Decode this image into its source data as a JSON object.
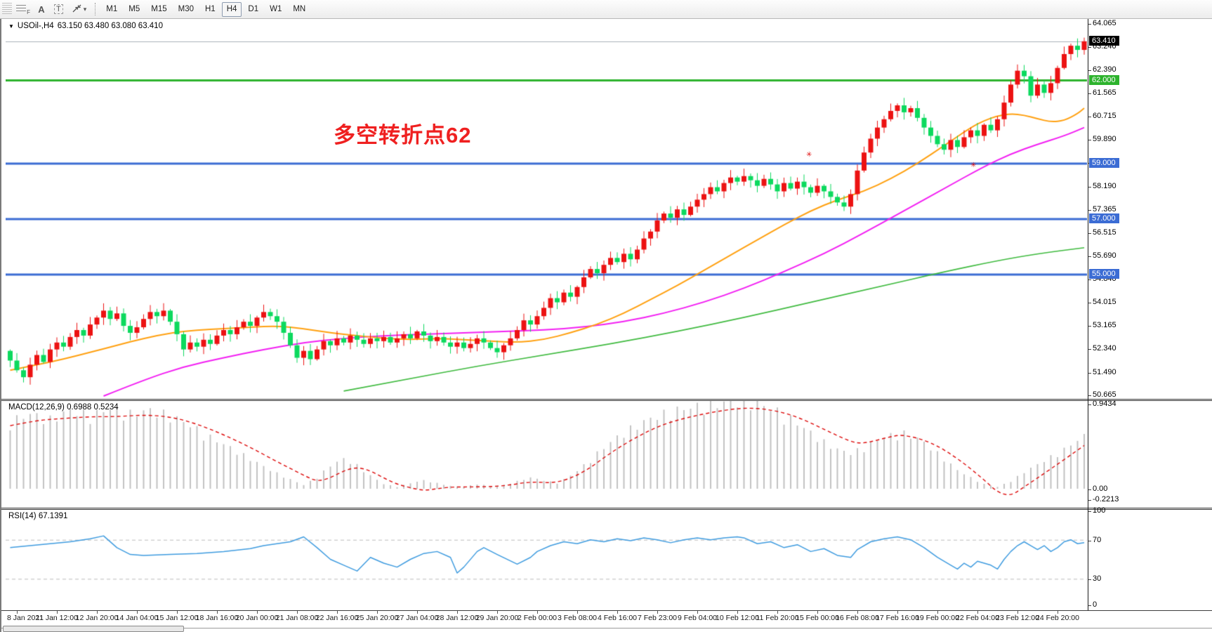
{
  "toolbar": {
    "tools": [
      {
        "name": "fibonacci-tool",
        "label": "F"
      },
      {
        "name": "text-tool",
        "label": "A"
      },
      {
        "name": "text-label-tool",
        "label": "T"
      },
      {
        "name": "arrows-tool",
        "label": ""
      }
    ],
    "timeframes": [
      "M1",
      "M5",
      "M15",
      "M30",
      "H1",
      "H4",
      "D1",
      "W1",
      "MN"
    ],
    "active_timeframe": "H4"
  },
  "chart": {
    "symbol_period": "USOil-,H4",
    "ohlc_readout": "63.150 63.480 63.080 63.410",
    "annotation": "多空转折点62",
    "price_axis_ticks": [
      "64.065",
      "63.240",
      "62.390",
      "61.565",
      "60.715",
      "59.890",
      "59.040",
      "58.190",
      "57.365",
      "56.515",
      "55.690",
      "54.840",
      "54.015",
      "53.165",
      "52.340",
      "51.490",
      "50.665"
    ],
    "hlines": [
      {
        "price": 62.0,
        "label": "62.000",
        "color": "#2db32d"
      },
      {
        "price": 59.0,
        "label": "59.000",
        "color": "#3b6cd4"
      },
      {
        "price": 57.0,
        "label": "57.000",
        "color": "#3b6cd4"
      },
      {
        "price": 55.0,
        "label": "55.000",
        "color": "#3b6cd4"
      }
    ],
    "current_price": {
      "value": 63.41,
      "label": "63.410",
      "color": "#000000"
    },
    "time_labels": [
      "8 Jan 2021",
      "11 Jan 12:00",
      "12 Jan 20:00",
      "14 Jan 04:00",
      "15 Jan 12:00",
      "18 Jan 16:00",
      "20 Jan 00:00",
      "21 Jan 08:00",
      "22 Jan 16:00",
      "25 Jan 20:00",
      "27 Jan 04:00",
      "28 Jan 12:00",
      "29 Jan 20:00",
      "2 Feb 00:00",
      "3 Feb 08:00",
      "4 Feb 16:00",
      "7 Feb 23:00",
      "9 Feb 04:00",
      "10 Feb 12:00",
      "11 Feb 20:00",
      "15 Feb 00:00",
      "16 Feb 08:00",
      "17 Feb 16:00",
      "19 Feb 00:00",
      "22 Feb 04:00",
      "23 Feb 12:00",
      "24 Feb 20:00"
    ]
  },
  "macd_panel": {
    "label": "MACD(12,26,9) 0.6988 0.5234",
    "axis_ticks": [
      "0.9434",
      "0.00",
      "-0.2213"
    ]
  },
  "rsi_panel": {
    "label": "RSI(14) 67.1391",
    "axis_ticks": [
      "100",
      "70",
      "30",
      "0"
    ]
  },
  "colors": {
    "candle_up": "#ec1212",
    "candle_down": "#0cd95e",
    "ma_fast": "#ffa010",
    "ma_mid": "#f21ff2",
    "ma_slow": "#3fba3f",
    "macd_hist": "#c2c2c2",
    "macd_signal": "#dd0b0b",
    "rsi_line": "#3e9bdf",
    "rsi_levels": "#bbbbbb",
    "current_price_line": "#a8b0b8"
  },
  "chart_data": {
    "type": "candlestick+indicators",
    "bars": 162,
    "price_range": [
      50.665,
      64.065
    ],
    "closes": [
      51.9,
      51.55,
      51.3,
      51.75,
      52.1,
      51.85,
      52.3,
      52.55,
      52.4,
      52.75,
      53.0,
      52.8,
      53.2,
      53.45,
      53.7,
      53.4,
      53.6,
      53.15,
      52.9,
      53.1,
      53.4,
      53.65,
      53.5,
      53.7,
      53.3,
      52.85,
      52.3,
      52.55,
      52.4,
      52.65,
      52.5,
      52.8,
      53.0,
      52.85,
      53.1,
      53.3,
      53.15,
      53.45,
      53.65,
      53.5,
      53.3,
      52.9,
      52.45,
      52.0,
      52.25,
      51.95,
      52.3,
      52.6,
      52.45,
      52.7,
      52.55,
      52.8,
      52.65,
      52.5,
      52.7,
      52.6,
      52.75,
      52.55,
      52.7,
      52.85,
      52.7,
      52.95,
      52.8,
      52.6,
      52.75,
      52.55,
      52.4,
      52.55,
      52.35,
      52.5,
      52.7,
      52.55,
      52.35,
      52.2,
      52.45,
      52.7,
      53.0,
      53.35,
      53.2,
      53.5,
      53.8,
      54.15,
      54.0,
      54.35,
      54.2,
      54.55,
      54.9,
      55.2,
      55.05,
      55.35,
      55.6,
      55.45,
      55.75,
      55.55,
      55.9,
      56.3,
      56.55,
      56.95,
      57.2,
      57.05,
      57.35,
      57.15,
      57.45,
      57.7,
      57.9,
      58.15,
      58.0,
      58.3,
      58.5,
      58.35,
      58.55,
      58.4,
      58.2,
      58.45,
      58.25,
      58.0,
      58.3,
      58.1,
      58.35,
      58.15,
      57.95,
      58.2,
      58.0,
      57.8,
      57.6,
      57.45,
      57.9,
      58.75,
      59.4,
      59.9,
      60.3,
      60.6,
      60.9,
      61.1,
      60.85,
      61.0,
      60.65,
      60.3,
      60.0,
      59.7,
      59.5,
      59.85,
      59.6,
      59.95,
      60.2,
      60.0,
      60.4,
      60.2,
      60.6,
      61.2,
      61.85,
      62.35,
      62.15,
      61.45,
      61.85,
      61.55,
      61.9,
      62.45,
      62.95,
      63.25,
      63.1,
      63.41
    ],
    "ma_fast_orange": [
      [
        0,
        51.55
      ],
      [
        4,
        51.75
      ],
      [
        8,
        51.95
      ],
      [
        12,
        52.2
      ],
      [
        16,
        52.45
      ],
      [
        20,
        52.7
      ],
      [
        24,
        52.9
      ],
      [
        28,
        53.0
      ],
      [
        32,
        53.05
      ],
      [
        36,
        53.1
      ],
      [
        40,
        53.15
      ],
      [
        44,
        53.05
      ],
      [
        48,
        52.9
      ],
      [
        52,
        52.8
      ],
      [
        56,
        52.7
      ],
      [
        60,
        52.65
      ],
      [
        64,
        52.7
      ],
      [
        68,
        52.65
      ],
      [
        72,
        52.6
      ],
      [
        76,
        52.55
      ],
      [
        80,
        52.65
      ],
      [
        84,
        52.9
      ],
      [
        88,
        53.2
      ],
      [
        92,
        53.6
      ],
      [
        96,
        54.1
      ],
      [
        100,
        54.6
      ],
      [
        104,
        55.15
      ],
      [
        108,
        55.7
      ],
      [
        112,
        56.25
      ],
      [
        116,
        56.8
      ],
      [
        120,
        57.3
      ],
      [
        124,
        57.7
      ],
      [
        128,
        58.0
      ],
      [
        132,
        58.45
      ],
      [
        136,
        59.0
      ],
      [
        140,
        59.65
      ],
      [
        144,
        60.3
      ],
      [
        146,
        60.55
      ],
      [
        148,
        60.72
      ],
      [
        150,
        60.8
      ],
      [
        152,
        60.75
      ],
      [
        154,
        60.62
      ],
      [
        156,
        60.5
      ],
      [
        158,
        60.55
      ],
      [
        160,
        60.8
      ],
      [
        161,
        61.0
      ]
    ],
    "ma_mid_magenta": [
      [
        14,
        50.62
      ],
      [
        20,
        51.2
      ],
      [
        26,
        51.68
      ],
      [
        32,
        52.0
      ],
      [
        38,
        52.3
      ],
      [
        44,
        52.55
      ],
      [
        50,
        52.7
      ],
      [
        56,
        52.8
      ],
      [
        62,
        52.85
      ],
      [
        68,
        52.9
      ],
      [
        74,
        52.95
      ],
      [
        80,
        53.0
      ],
      [
        86,
        53.1
      ],
      [
        92,
        53.3
      ],
      [
        98,
        53.6
      ],
      [
        104,
        54.0
      ],
      [
        110,
        54.5
      ],
      [
        116,
        55.1
      ],
      [
        122,
        55.75
      ],
      [
        128,
        56.5
      ],
      [
        134,
        57.3
      ],
      [
        140,
        58.1
      ],
      [
        146,
        58.9
      ],
      [
        150,
        59.35
      ],
      [
        154,
        59.7
      ],
      [
        158,
        60.0
      ],
      [
        161,
        60.3
      ]
    ],
    "ma_slow_green": [
      [
        50,
        50.8
      ],
      [
        60,
        51.25
      ],
      [
        70,
        51.7
      ],
      [
        80,
        52.1
      ],
      [
        90,
        52.5
      ],
      [
        100,
        52.95
      ],
      [
        110,
        53.45
      ],
      [
        120,
        54.0
      ],
      [
        130,
        54.55
      ],
      [
        140,
        55.1
      ],
      [
        148,
        55.5
      ],
      [
        154,
        55.75
      ],
      [
        161,
        55.97
      ]
    ],
    "macd_hist": [
      [
        0,
        0.72
      ],
      [
        3,
        0.8
      ],
      [
        6,
        0.74
      ],
      [
        9,
        0.84
      ],
      [
        12,
        0.78
      ],
      [
        15,
        0.86
      ],
      [
        18,
        0.8
      ],
      [
        21,
        0.84
      ],
      [
        24,
        0.78
      ],
      [
        27,
        0.68
      ],
      [
        30,
        0.55
      ],
      [
        33,
        0.44
      ],
      [
        36,
        0.32
      ],
      [
        39,
        0.2
      ],
      [
        42,
        0.1
      ],
      [
        44,
        0.04
      ],
      [
        46,
        0.12
      ],
      [
        48,
        0.25
      ],
      [
        50,
        0.32
      ],
      [
        52,
        0.25
      ],
      [
        54,
        0.14
      ],
      [
        56,
        0.05
      ],
      [
        58,
        0.02
      ],
      [
        60,
        0.06
      ],
      [
        62,
        0.09
      ],
      [
        64,
        0.06
      ],
      [
        66,
        0.03
      ],
      [
        68,
        0.02
      ],
      [
        70,
        0.05
      ],
      [
        72,
        0.03
      ],
      [
        74,
        0.04
      ],
      [
        76,
        0.08
      ],
      [
        78,
        0.12
      ],
      [
        80,
        0.09
      ],
      [
        82,
        0.06
      ],
      [
        84,
        0.14
      ],
      [
        86,
        0.25
      ],
      [
        88,
        0.38
      ],
      [
        90,
        0.5
      ],
      [
        92,
        0.6
      ],
      [
        94,
        0.68
      ],
      [
        96,
        0.75
      ],
      [
        98,
        0.8
      ],
      [
        100,
        0.84
      ],
      [
        102,
        0.87
      ],
      [
        104,
        0.89
      ],
      [
        106,
        0.91
      ],
      [
        108,
        0.93
      ],
      [
        110,
        0.94
      ],
      [
        112,
        0.91
      ],
      [
        114,
        0.86
      ],
      [
        116,
        0.79
      ],
      [
        118,
        0.7
      ],
      [
        120,
        0.6
      ],
      [
        122,
        0.5
      ],
      [
        124,
        0.42
      ],
      [
        126,
        0.38
      ],
      [
        128,
        0.44
      ],
      [
        130,
        0.52
      ],
      [
        132,
        0.57
      ],
      [
        134,
        0.59
      ],
      [
        136,
        0.54
      ],
      [
        138,
        0.44
      ],
      [
        140,
        0.32
      ],
      [
        142,
        0.2
      ],
      [
        144,
        0.12
      ],
      [
        146,
        0.05
      ],
      [
        148,
        0.02
      ],
      [
        150,
        0.08
      ],
      [
        152,
        0.18
      ],
      [
        154,
        0.26
      ],
      [
        156,
        0.34
      ],
      [
        158,
        0.42
      ],
      [
        160,
        0.52
      ],
      [
        161,
        0.56
      ]
    ],
    "macd_signal": [
      [
        0,
        0.7
      ],
      [
        4,
        0.76
      ],
      [
        8,
        0.78
      ],
      [
        12,
        0.8
      ],
      [
        16,
        0.8
      ],
      [
        20,
        0.82
      ],
      [
        24,
        0.8
      ],
      [
        28,
        0.72
      ],
      [
        32,
        0.6
      ],
      [
        36,
        0.46
      ],
      [
        40,
        0.3
      ],
      [
        44,
        0.15
      ],
      [
        46,
        0.08
      ],
      [
        48,
        0.12
      ],
      [
        50,
        0.2
      ],
      [
        52,
        0.24
      ],
      [
        54,
        0.2
      ],
      [
        56,
        0.12
      ],
      [
        58,
        0.05
      ],
      [
        60,
        0.01
      ],
      [
        62,
        -0.02
      ],
      [
        64,
        0.0
      ],
      [
        66,
        0.02
      ],
      [
        70,
        0.02
      ],
      [
        74,
        0.03
      ],
      [
        78,
        0.08
      ],
      [
        82,
        0.06
      ],
      [
        86,
        0.18
      ],
      [
        90,
        0.4
      ],
      [
        94,
        0.58
      ],
      [
        98,
        0.72
      ],
      [
        102,
        0.8
      ],
      [
        106,
        0.86
      ],
      [
        110,
        0.9
      ],
      [
        114,
        0.88
      ],
      [
        118,
        0.8
      ],
      [
        122,
        0.66
      ],
      [
        126,
        0.52
      ],
      [
        128,
        0.5
      ],
      [
        132,
        0.58
      ],
      [
        134,
        0.6
      ],
      [
        138,
        0.52
      ],
      [
        142,
        0.34
      ],
      [
        146,
        0.1
      ],
      [
        148,
        -0.04
      ],
      [
        150,
        -0.08
      ],
      [
        152,
        0.02
      ],
      [
        156,
        0.22
      ],
      [
        161,
        0.48
      ]
    ],
    "rsi": [
      [
        0,
        62
      ],
      [
        3,
        64
      ],
      [
        6,
        66
      ],
      [
        9,
        68
      ],
      [
        12,
        71
      ],
      [
        14,
        74
      ],
      [
        16,
        62
      ],
      [
        18,
        55
      ],
      [
        20,
        54
      ],
      [
        24,
        55
      ],
      [
        28,
        56
      ],
      [
        32,
        58
      ],
      [
        36,
        61
      ],
      [
        38,
        64
      ],
      [
        40,
        66
      ],
      [
        42,
        68
      ],
      [
        44,
        73
      ],
      [
        46,
        62
      ],
      [
        48,
        50
      ],
      [
        50,
        44
      ],
      [
        52,
        38
      ],
      [
        53,
        45
      ],
      [
        54,
        52
      ],
      [
        56,
        46
      ],
      [
        58,
        42
      ],
      [
        60,
        50
      ],
      [
        62,
        56
      ],
      [
        64,
        58
      ],
      [
        66,
        52
      ],
      [
        67,
        36
      ],
      [
        68,
        42
      ],
      [
        70,
        58
      ],
      [
        71,
        62
      ],
      [
        73,
        55
      ],
      [
        76,
        45
      ],
      [
        78,
        52
      ],
      [
        79,
        58
      ],
      [
        81,
        64
      ],
      [
        83,
        68
      ],
      [
        85,
        66
      ],
      [
        87,
        70
      ],
      [
        89,
        68
      ],
      [
        91,
        71
      ],
      [
        93,
        69
      ],
      [
        95,
        72
      ],
      [
        97,
        70
      ],
      [
        99,
        67
      ],
      [
        101,
        70
      ],
      [
        103,
        72
      ],
      [
        105,
        70
      ],
      [
        107,
        72
      ],
      [
        109,
        73
      ],
      [
        110,
        72
      ],
      [
        112,
        66
      ],
      [
        114,
        68
      ],
      [
        116,
        62
      ],
      [
        118,
        65
      ],
      [
        120,
        58
      ],
      [
        122,
        61
      ],
      [
        124,
        54
      ],
      [
        126,
        52
      ],
      [
        127,
        60
      ],
      [
        129,
        68
      ],
      [
        131,
        71
      ],
      [
        133,
        73
      ],
      [
        135,
        70
      ],
      [
        137,
        62
      ],
      [
        139,
        52
      ],
      [
        141,
        44
      ],
      [
        142,
        40
      ],
      [
        143,
        46
      ],
      [
        144,
        42
      ],
      [
        145,
        48
      ],
      [
        147,
        44
      ],
      [
        148,
        40
      ],
      [
        149,
        50
      ],
      [
        150,
        58
      ],
      [
        151,
        64
      ],
      [
        152,
        68
      ],
      [
        153,
        64
      ],
      [
        154,
        60
      ],
      [
        155,
        64
      ],
      [
        156,
        58
      ],
      [
        157,
        62
      ],
      [
        158,
        68
      ],
      [
        159,
        70
      ],
      [
        160,
        66
      ],
      [
        161,
        67.1
      ]
    ],
    "rsi_levels": [
      70,
      30
    ]
  }
}
